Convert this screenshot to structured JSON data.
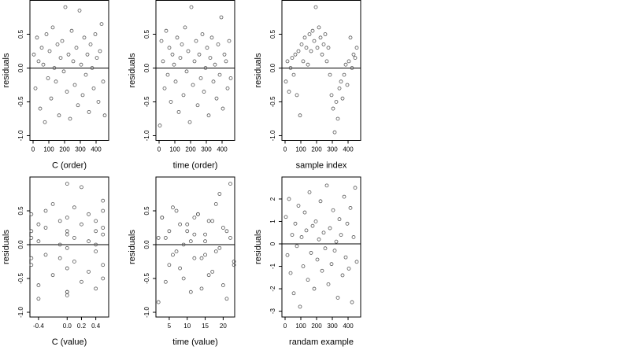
{
  "chart_data": [
    {
      "type": "scatter",
      "xlabel": "C (order)",
      "ylabel": "residuals",
      "color": "#555555",
      "hline": 0,
      "xlim": [
        -20,
        480
      ],
      "ylim": [
        -1.07,
        1.0
      ],
      "xticks": [
        0,
        100,
        200,
        300,
        400
      ],
      "yticks": [
        {
          "value": -1,
          "label": "-1.0"
        },
        {
          "value": -0.5,
          "label": "-0.5"
        },
        {
          "value": 0,
          "label": "0.0"
        },
        {
          "value": 0.5,
          "label": "0.5"
        }
      ],
      "x": [
        5,
        15,
        25,
        35,
        45,
        55,
        65,
        75,
        85,
        95,
        105,
        115,
        125,
        135,
        145,
        155,
        165,
        175,
        185,
        195,
        205,
        215,
        225,
        235,
        245,
        255,
        265,
        275,
        285,
        295,
        305,
        315,
        325,
        335,
        345,
        355,
        365,
        375,
        385,
        395,
        405,
        415,
        425,
        435,
        445,
        455
      ],
      "values": [
        0.2,
        -0.3,
        0.45,
        0.1,
        -0.6,
        0.3,
        0.05,
        -0.8,
        0.5,
        -0.15,
        0.25,
        -0.45,
        0.6,
        0.0,
        -0.2,
        0.35,
        -0.7,
        0.15,
        0.4,
        -0.05,
        0.9,
        -0.35,
        0.2,
        -0.75,
        0.55,
        0.1,
        -0.25,
        0.3,
        -0.55,
        0.85,
        0.05,
        -0.4,
        0.45,
        -0.1,
        0.2,
        -0.65,
        0.35,
        0.0,
        -0.3,
        0.5,
        0.15,
        -0.5,
        0.25,
        0.65,
        -0.2,
        -0.7
      ]
    },
    {
      "type": "scatter",
      "xlabel": "time (order)",
      "ylabel": "residuals",
      "color": "#555555",
      "hline": 0,
      "xlim": [
        -20,
        480
      ],
      "ylim": [
        -1.07,
        1.0
      ],
      "xticks": [
        0,
        100,
        200,
        300,
        400
      ],
      "yticks": [
        {
          "value": -1,
          "label": "-1.0"
        },
        {
          "value": -0.5,
          "label": "-0.5"
        },
        {
          "value": 0,
          "label": "0.0"
        },
        {
          "value": 0.5,
          "label": "0.5"
        }
      ],
      "x": [
        5,
        15,
        25,
        35,
        45,
        55,
        65,
        75,
        85,
        95,
        105,
        115,
        125,
        135,
        145,
        155,
        165,
        175,
        185,
        195,
        205,
        215,
        225,
        235,
        245,
        255,
        265,
        275,
        285,
        295,
        305,
        315,
        325,
        335,
        345,
        355,
        365,
        375,
        385,
        395,
        405,
        415,
        425,
        435,
        445,
        455
      ],
      "values": [
        -0.85,
        0.4,
        0.1,
        -0.3,
        0.55,
        -0.1,
        0.3,
        -0.5,
        0.2,
        0.05,
        -0.2,
        0.45,
        -0.65,
        0.15,
        0.35,
        -0.4,
        0.6,
        -0.05,
        0.25,
        -0.8,
        0.9,
        -0.25,
        0.1,
        0.4,
        -0.55,
        0.2,
        -0.15,
        0.5,
        -0.35,
        0.0,
        0.3,
        -0.7,
        0.15,
        0.45,
        -0.2,
        0.05,
        -0.45,
        0.35,
        -0.1,
        0.75,
        -0.6,
        0.2,
        0.1,
        -0.3,
        0.4,
        -0.15
      ]
    },
    {
      "type": "scatter",
      "xlabel": "sample index",
      "ylabel": "residuals",
      "color": "#555555",
      "hline": 0,
      "xlim": [
        -20,
        480
      ],
      "ylim": [
        -1.07,
        1.0
      ],
      "xticks": [
        0,
        100,
        200,
        300,
        400
      ],
      "yticks": [
        {
          "value": -1,
          "label": "-1.0"
        },
        {
          "value": -0.5,
          "label": "-0.5"
        },
        {
          "value": 0,
          "label": "0.0"
        },
        {
          "value": 0.5,
          "label": "0.5"
        }
      ],
      "x": [
        5,
        15,
        25,
        35,
        45,
        55,
        65,
        75,
        85,
        95,
        105,
        115,
        125,
        135,
        145,
        155,
        165,
        175,
        185,
        195,
        205,
        215,
        225,
        235,
        245,
        255,
        265,
        275,
        285,
        295,
        305,
        315,
        325,
        335,
        345,
        355,
        365,
        375,
        385,
        395,
        405,
        415,
        425,
        435,
        445,
        455
      ],
      "values": [
        -0.2,
        0.1,
        -0.35,
        0.0,
        0.15,
        -0.1,
        0.2,
        -0.4,
        0.25,
        -0.7,
        0.35,
        0.1,
        0.45,
        0.3,
        0.05,
        0.5,
        0.25,
        0.55,
        0.4,
        0.9,
        0.3,
        0.6,
        0.45,
        0.2,
        0.35,
        0.5,
        0.1,
        0.3,
        -0.1,
        -0.4,
        -0.6,
        -0.95,
        -0.5,
        -0.75,
        -0.3,
        -0.2,
        -0.45,
        -0.1,
        0.05,
        -0.25,
        0.1,
        0.45,
        0.0,
        0.2,
        0.15,
        0.3
      ]
    },
    {
      "type": "scatter",
      "xlabel": "C (value)",
      "ylabel": "residuals",
      "color": "#555555",
      "hline": 0,
      "xlim": [
        -0.52,
        0.58
      ],
      "ylim": [
        -1.07,
        1.0
      ],
      "xticks": [
        -0.4,
        {
          "value": 0,
          "label": "0.0"
        },
        0.2,
        0.4
      ],
      "yticks": [
        {
          "value": -1,
          "label": "-1.0"
        },
        {
          "value": -0.5,
          "label": "-0.5"
        },
        {
          "value": 0,
          "label": "0.0"
        },
        {
          "value": 0.5,
          "label": "0.5"
        }
      ],
      "x": [
        -0.5,
        -0.5,
        -0.5,
        -0.5,
        -0.4,
        -0.4,
        -0.4,
        -0.4,
        -0.3,
        -0.3,
        -0.3,
        -0.2,
        -0.2,
        -0.1,
        -0.1,
        -0.1,
        0,
        0,
        0,
        0,
        0,
        0,
        0,
        0,
        0.1,
        0.1,
        0.1,
        0.2,
        0.2,
        0.2,
        0.3,
        0.3,
        0.3,
        0.4,
        0.4,
        0.4,
        0.4,
        0.4,
        0.5,
        0.5,
        0.5,
        0.5,
        0.5,
        0.5,
        -0.5,
        0
      ],
      "values": [
        0.2,
        -0.3,
        0.45,
        0.1,
        -0.6,
        0.3,
        0.05,
        -0.8,
        0.5,
        -0.15,
        0.25,
        -0.45,
        0.6,
        0.0,
        -0.2,
        0.35,
        -0.7,
        0.15,
        0.4,
        -0.05,
        0.9,
        -0.35,
        0.2,
        -0.75,
        0.55,
        0.1,
        -0.25,
        0.3,
        -0.55,
        0.85,
        0.05,
        -0.4,
        0.45,
        -0.1,
        0.2,
        -0.65,
        0.35,
        0.0,
        -0.3,
        0.5,
        0.15,
        -0.5,
        0.25,
        0.65,
        -0.2,
        -0.7
      ]
    },
    {
      "type": "scatter",
      "xlabel": "time (value)",
      "ylabel": "residuals",
      "color": "#555555",
      "hline": 0,
      "xlim": [
        1.3,
        23.2
      ],
      "ylim": [
        -1.07,
        1.0
      ],
      "xticks": [
        5,
        10,
        15,
        20
      ],
      "yticks": [
        {
          "value": -1,
          "label": "-1.0"
        },
        {
          "value": -0.5,
          "label": "-0.5"
        },
        {
          "value": 0,
          "label": "0.0"
        },
        {
          "value": 0.5,
          "label": "0.5"
        }
      ],
      "x": [
        2,
        3,
        4,
        5,
        6,
        7,
        8,
        9,
        10,
        11,
        12,
        13,
        14,
        15,
        16,
        17,
        18,
        19,
        20,
        21,
        22,
        23,
        2,
        3,
        4,
        5,
        6,
        7,
        8,
        9,
        10,
        11,
        12,
        13,
        14,
        15,
        16,
        17,
        18,
        19,
        20,
        21,
        22,
        23,
        12,
        15
      ],
      "values": [
        -0.85,
        0.4,
        0.1,
        -0.3,
        0.55,
        -0.1,
        0.3,
        -0.5,
        0.2,
        0.05,
        -0.2,
        0.45,
        -0.65,
        0.15,
        0.35,
        -0.4,
        0.6,
        -0.05,
        0.25,
        -0.8,
        0.9,
        -0.25,
        0.1,
        0.4,
        -0.55,
        0.2,
        -0.15,
        0.5,
        -0.35,
        0.0,
        0.3,
        -0.7,
        0.15,
        0.45,
        -0.2,
        0.05,
        -0.45,
        0.35,
        -0.1,
        0.75,
        -0.6,
        0.2,
        0.1,
        -0.3,
        0.4,
        -0.15
      ]
    },
    {
      "type": "scatter",
      "xlabel": "randam example",
      "ylabel": "residuals",
      "color": "#555555",
      "hline": 0,
      "xlim": [
        -20,
        480
      ],
      "ylim": [
        -3.26,
        2.98
      ],
      "xticks": [
        0,
        100,
        200,
        300,
        400
      ],
      "yticks": [
        -3,
        -2,
        -1,
        0,
        1,
        2
      ],
      "x": [
        5,
        15,
        25,
        35,
        45,
        55,
        65,
        75,
        85,
        95,
        105,
        115,
        125,
        135,
        145,
        155,
        165,
        175,
        185,
        195,
        205,
        215,
        225,
        235,
        245,
        255,
        265,
        275,
        285,
        295,
        305,
        315,
        325,
        335,
        345,
        355,
        365,
        375,
        385,
        395,
        405,
        415,
        425,
        435,
        445,
        455
      ],
      "values": [
        1.2,
        -0.5,
        2.0,
        -1.3,
        0.4,
        -2.2,
        0.9,
        -0.1,
        1.7,
        -2.8,
        0.3,
        -1.0,
        1.4,
        0.6,
        -1.6,
        2.3,
        -0.4,
        0.8,
        -2.0,
        1.0,
        -0.7,
        0.2,
        1.9,
        -1.2,
        0.5,
        -0.2,
        2.6,
        -1.8,
        0.7,
        -0.9,
        1.5,
        -0.3,
        0.1,
        -2.4,
        1.1,
        0.4,
        -1.4,
        2.1,
        -0.6,
        0.9,
        -1.1,
        1.6,
        -2.6,
        0.3,
        2.5,
        -0.8
      ]
    }
  ]
}
